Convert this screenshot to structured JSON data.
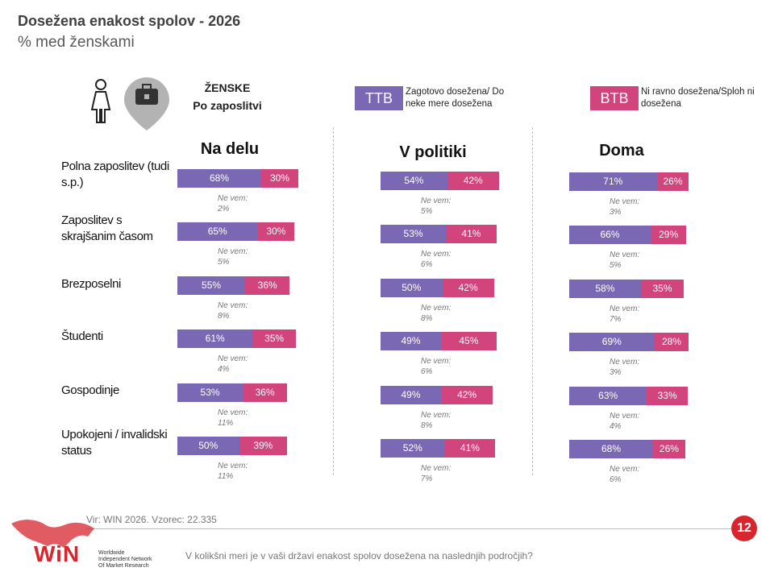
{
  "header": {
    "title": "Dosežena enakost spolov - 2026",
    "subtitle": "% med ženskami",
    "group_title": "ŽENSKE",
    "group_subtitle": "Po zaposlitvi"
  },
  "legend": [
    {
      "label": "TTB",
      "text": "Zagotovo dosežena/ Do neke mere dosežena",
      "color": "#7b68b5"
    },
    {
      "label": "BTB",
      "text": "Ni ravno dosežena/Sploh ni dosežena",
      "color": "#d1457c"
    }
  ],
  "categories": [
    "Polna zaposlitev (tudi s.p.)",
    "Zaposlitev s skrajšanim časom",
    "Brezposelni",
    "Študenti",
    "Gospodinje",
    "Upokojeni / invalidski status"
  ],
  "chart_data": [
    {
      "type": "bar",
      "stacked": true,
      "orientation": "horizontal",
      "title": "Na delu",
      "series": [
        {
          "color": "#7b68b5",
          "values": [
            68,
            65,
            55,
            61,
            53,
            50
          ],
          "value_labels": [
            "68%",
            "65%",
            "55%",
            "61%",
            "53%",
            "50%"
          ]
        },
        {
          "color": "#d1457c",
          "values": [
            30,
            30,
            36,
            35,
            36,
            39
          ],
          "value_labels": [
            "30%",
            "30%",
            "36%",
            "35%",
            "36%",
            "39%"
          ]
        }
      ],
      "dont_know": {
        "label": "Ne vem:",
        "values": [
          2,
          5,
          8,
          4,
          11,
          11
        ],
        "value_labels": [
          "2%",
          "5%",
          "8%",
          "4%",
          "11%",
          "11%"
        ]
      }
    },
    {
      "type": "bar",
      "stacked": true,
      "orientation": "horizontal",
      "title": "V politiki",
      "series": [
        {
          "color": "#7b68b5",
          "values": [
            54,
            53,
            50,
            49,
            49,
            52
          ],
          "value_labels": [
            "54%",
            "53%",
            "50%",
            "49%",
            "49%",
            "52%"
          ]
        },
        {
          "color": "#d1457c",
          "values": [
            42,
            41,
            42,
            45,
            42,
            41
          ],
          "value_labels": [
            "42%",
            "41%",
            "42%",
            "45%",
            "42%",
            "41%"
          ]
        }
      ],
      "dont_know": {
        "label": "Ne vem:",
        "values": [
          5,
          6,
          8,
          6,
          8,
          7
        ],
        "value_labels": [
          "5%",
          "6%",
          "8%",
          "6%",
          "8%",
          "7%"
        ]
      }
    },
    {
      "type": "bar",
      "stacked": true,
      "orientation": "horizontal",
      "title": "Doma",
      "series": [
        {
          "color": "#7b68b5",
          "values": [
            71,
            66,
            58,
            69,
            63,
            68
          ],
          "value_labels": [
            "71%",
            "66%",
            "58%",
            "69%",
            "63%",
            "68%"
          ]
        },
        {
          "color": "#d1457c",
          "values": [
            26,
            29,
            35,
            28,
            33,
            26
          ],
          "value_labels": [
            "26%",
            "29%",
            "35%",
            "28%",
            "33%",
            "26%"
          ]
        }
      ],
      "dont_know": {
        "label": "Ne vem:",
        "values": [
          3,
          5,
          7,
          3,
          4,
          6
        ],
        "value_labels": [
          "3%",
          "5%",
          "7%",
          "3%",
          "4%",
          "6%"
        ]
      }
    }
  ],
  "footer": {
    "source": "Vir: WIN 2026.  Vzorec: 22.335",
    "question": "V kolikšni meri je v vaši državi enakost spolov dosežena na naslednjih področjih?",
    "page": "12",
    "logo": "WiN",
    "logo_tagline": [
      "Worldwide",
      "Independent Network",
      "Of Market Research"
    ]
  }
}
